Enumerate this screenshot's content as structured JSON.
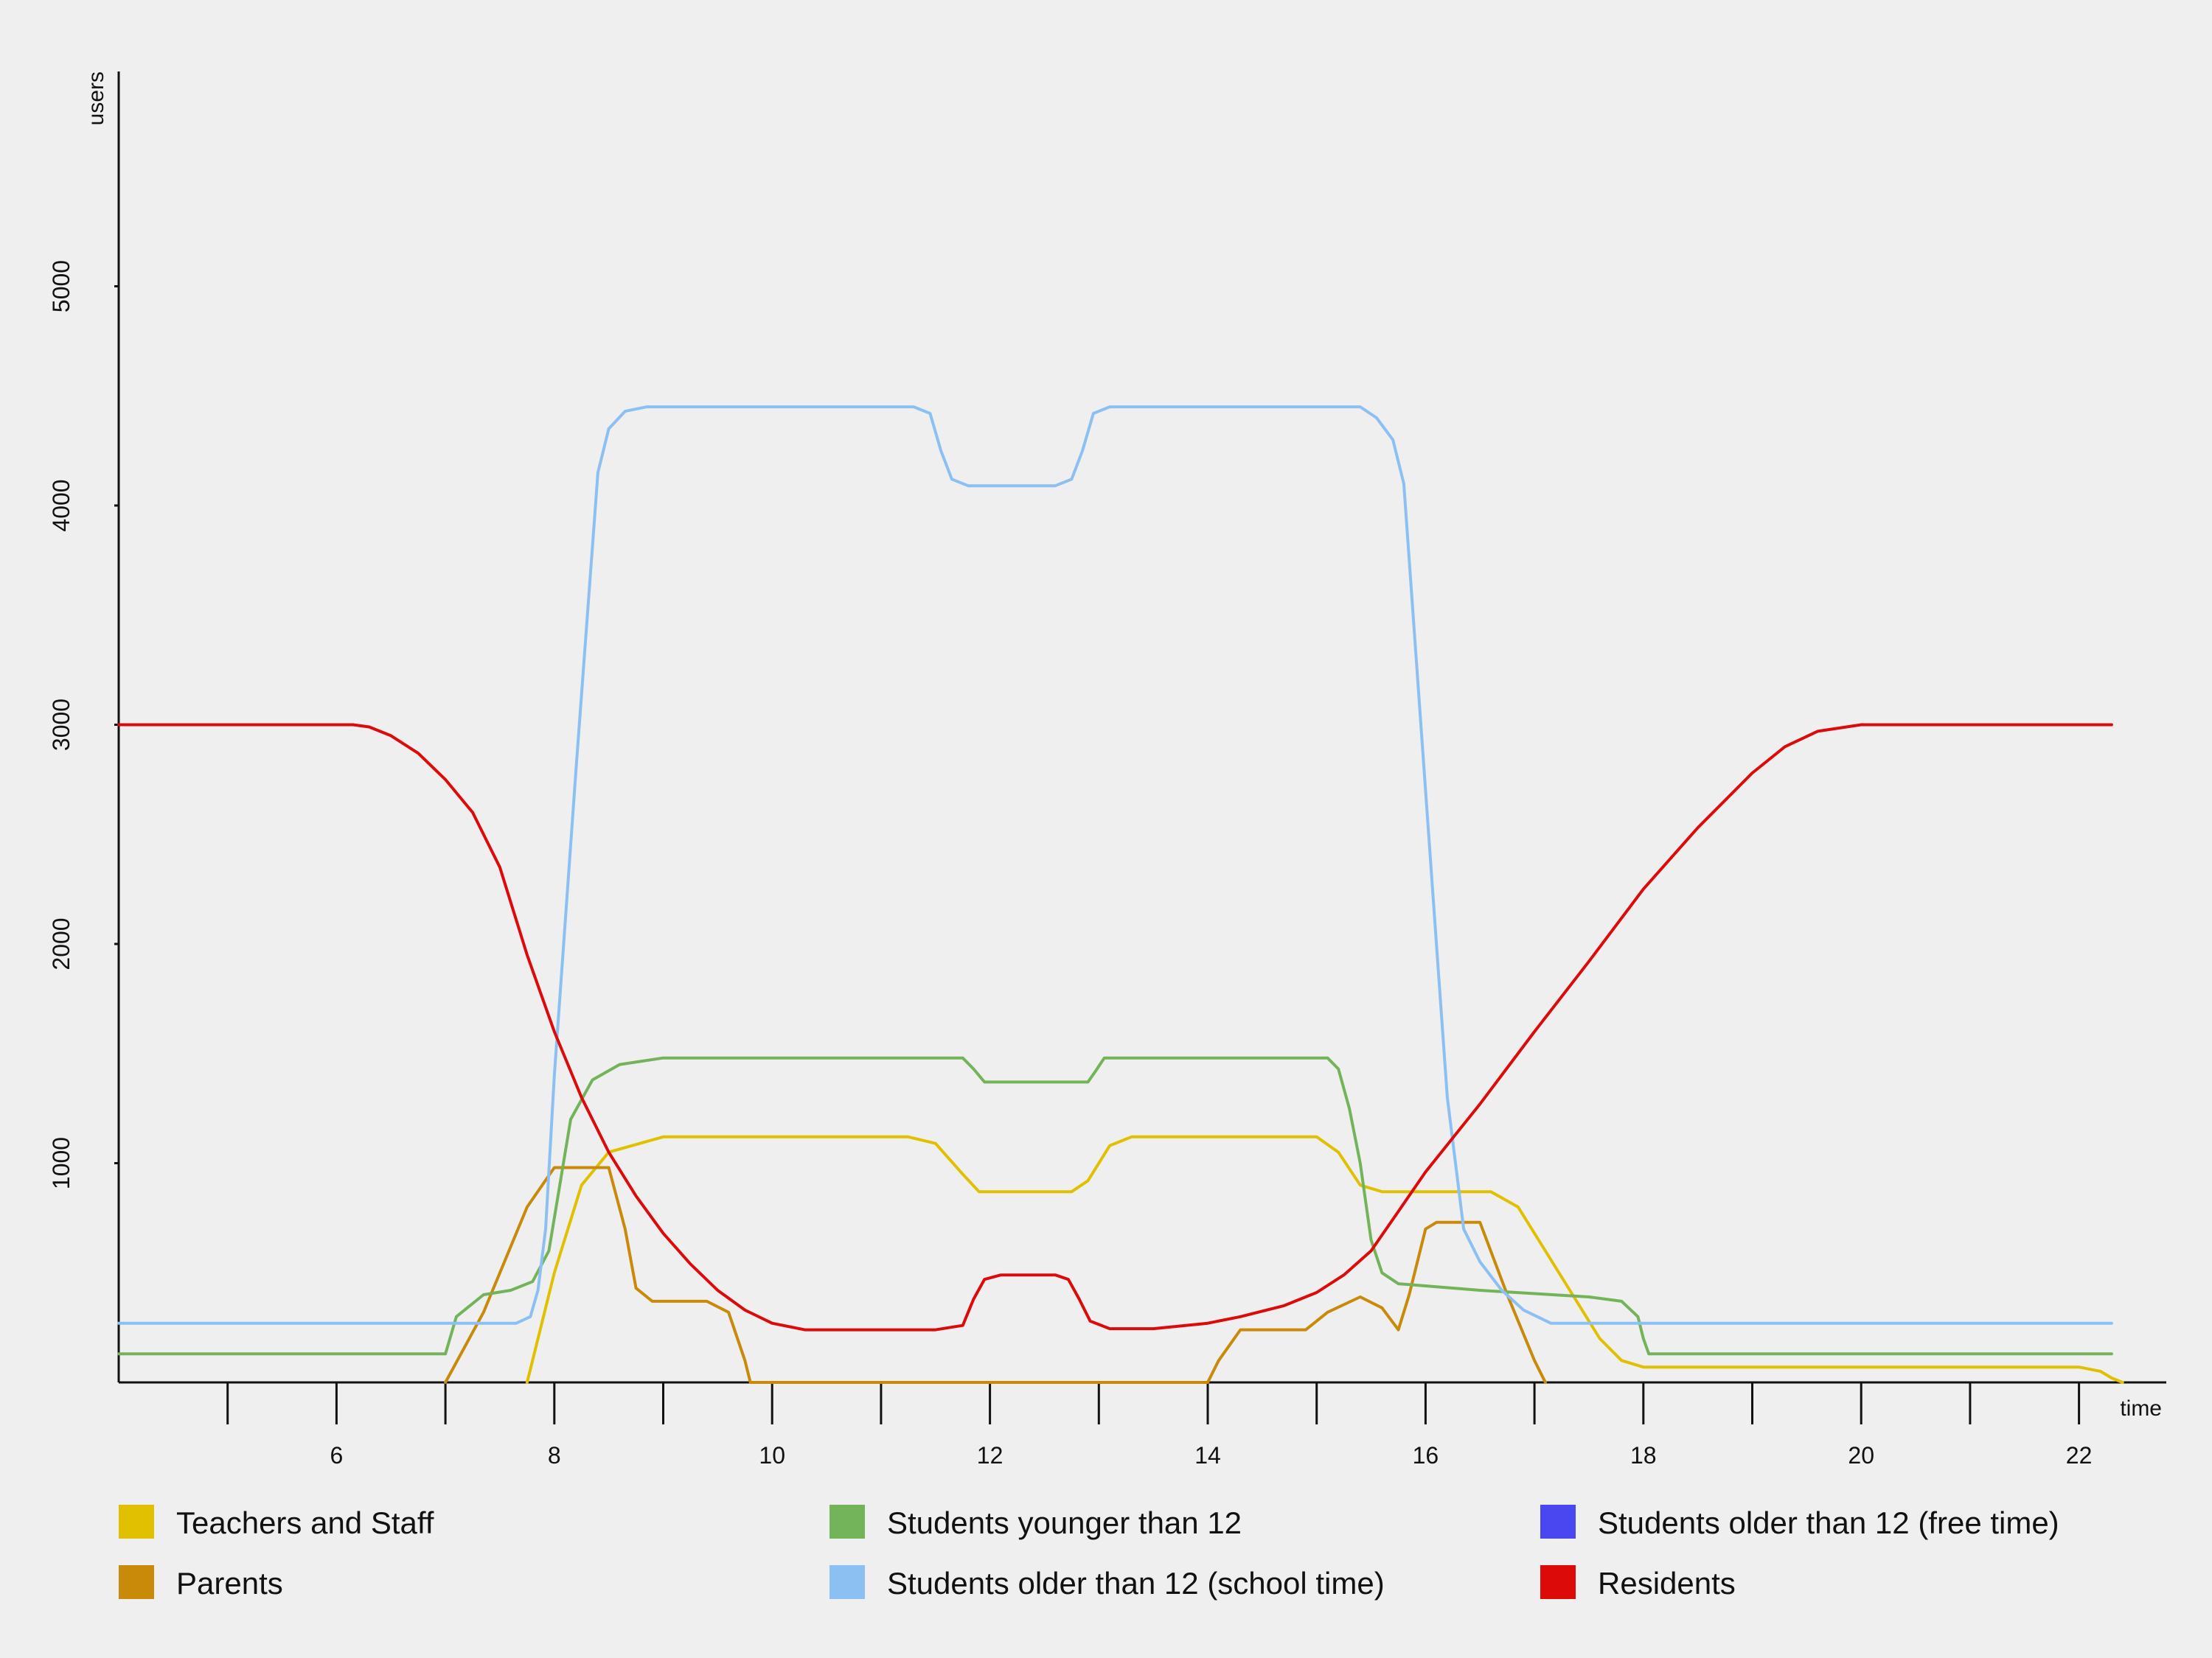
{
  "chart_data": {
    "type": "line",
    "title": "",
    "xlabel": "time",
    "ylabel": "users",
    "xlim": [
      4,
      23
    ],
    "ylim": [
      0,
      6000
    ],
    "x_ticks": [
      5,
      6,
      7,
      8,
      9,
      10,
      11,
      12,
      13,
      14,
      15,
      16,
      17,
      18,
      19,
      20,
      21,
      22
    ],
    "x_tick_labels": [
      {
        "x": 6,
        "label": "6"
      },
      {
        "x": 8,
        "label": "8"
      },
      {
        "x": 10,
        "label": "10"
      },
      {
        "x": 12,
        "label": "12"
      },
      {
        "x": 14,
        "label": "14"
      },
      {
        "x": 16,
        "label": "16"
      },
      {
        "x": 18,
        "label": "18"
      },
      {
        "x": 20,
        "label": "20"
      },
      {
        "x": 22,
        "label": "22"
      }
    ],
    "y_ticks": [
      1000,
      2000,
      3000,
      4000,
      5000
    ],
    "y_tick_labels": [
      "1000",
      "2000",
      "3000",
      "4000",
      "5000"
    ],
    "grid": false,
    "legend_position": "bottom",
    "series": [
      {
        "name": "Teachers and Staff",
        "color": "#e0c000",
        "points": [
          [
            7.75,
            0
          ],
          [
            8.0,
            500
          ],
          [
            8.25,
            900
          ],
          [
            8.5,
            1050
          ],
          [
            9.0,
            1120
          ],
          [
            11.25,
            1120
          ],
          [
            11.5,
            1090
          ],
          [
            11.75,
            950
          ],
          [
            11.9,
            870
          ],
          [
            12.75,
            870
          ],
          [
            12.9,
            920
          ],
          [
            13.1,
            1080
          ],
          [
            13.3,
            1120
          ],
          [
            15.0,
            1120
          ],
          [
            15.2,
            1050
          ],
          [
            15.4,
            900
          ],
          [
            15.6,
            870
          ],
          [
            16.6,
            870
          ],
          [
            16.85,
            800
          ],
          [
            17.1,
            600
          ],
          [
            17.35,
            400
          ],
          [
            17.6,
            200
          ],
          [
            17.8,
            100
          ],
          [
            18.0,
            70
          ],
          [
            22.0,
            70
          ],
          [
            22.2,
            50
          ],
          [
            22.3,
            20
          ],
          [
            22.4,
            0
          ]
        ]
      },
      {
        "name": "Parents",
        "color": "#c98a0a",
        "points": [
          [
            7.0,
            0
          ],
          [
            7.35,
            320
          ],
          [
            7.75,
            800
          ],
          [
            8.0,
            980
          ],
          [
            8.5,
            980
          ],
          [
            8.65,
            700
          ],
          [
            8.75,
            430
          ],
          [
            8.9,
            370
          ],
          [
            9.4,
            370
          ],
          [
            9.6,
            320
          ],
          [
            9.75,
            100
          ],
          [
            9.8,
            0
          ],
          [
            14.0,
            0
          ],
          [
            14.1,
            100
          ],
          [
            14.3,
            240
          ],
          [
            14.9,
            240
          ],
          [
            15.1,
            320
          ],
          [
            15.4,
            390
          ],
          [
            15.6,
            340
          ],
          [
            15.75,
            240
          ],
          [
            15.85,
            400
          ],
          [
            16.0,
            700
          ],
          [
            16.1,
            730
          ],
          [
            16.5,
            730
          ],
          [
            16.75,
            400
          ],
          [
            17.0,
            100
          ],
          [
            17.1,
            0
          ]
        ]
      },
      {
        "name": "Students younger than 12",
        "color": "#73b35a",
        "points": [
          [
            4.0,
            130
          ],
          [
            7.0,
            130
          ],
          [
            7.1,
            300
          ],
          [
            7.35,
            400
          ],
          [
            7.6,
            420
          ],
          [
            7.8,
            460
          ],
          [
            7.95,
            600
          ],
          [
            8.05,
            900
          ],
          [
            8.15,
            1200
          ],
          [
            8.35,
            1380
          ],
          [
            8.6,
            1450
          ],
          [
            9.0,
            1480
          ],
          [
            11.75,
            1480
          ],
          [
            11.85,
            1430
          ],
          [
            11.95,
            1370
          ],
          [
            12.9,
            1370
          ],
          [
            12.97,
            1420
          ],
          [
            13.05,
            1480
          ],
          [
            15.1,
            1480
          ],
          [
            15.2,
            1430
          ],
          [
            15.3,
            1250
          ],
          [
            15.4,
            1000
          ],
          [
            15.5,
            650
          ],
          [
            15.6,
            500
          ],
          [
            15.75,
            450
          ],
          [
            16.5,
            420
          ],
          [
            17.5,
            390
          ],
          [
            17.8,
            370
          ],
          [
            17.95,
            300
          ],
          [
            18.0,
            200
          ],
          [
            18.05,
            130
          ],
          [
            22.3,
            130
          ]
        ]
      },
      {
        "name": "Students older than 12 (free time)",
        "color": "#4a46f0",
        "points": []
      },
      {
        "name": "Students older than 12 (school time)",
        "color": "#8cc0f2",
        "points": [
          [
            4.0,
            270
          ],
          [
            7.65,
            270
          ],
          [
            7.78,
            300
          ],
          [
            7.85,
            420
          ],
          [
            7.92,
            700
          ],
          [
            8.0,
            1400
          ],
          [
            8.2,
            2800
          ],
          [
            8.4,
            4150
          ],
          [
            8.5,
            4350
          ],
          [
            8.65,
            4430
          ],
          [
            8.85,
            4450
          ],
          [
            11.3,
            4450
          ],
          [
            11.45,
            4420
          ],
          [
            11.55,
            4250
          ],
          [
            11.65,
            4120
          ],
          [
            11.8,
            4090
          ],
          [
            12.6,
            4090
          ],
          [
            12.75,
            4120
          ],
          [
            12.85,
            4250
          ],
          [
            12.95,
            4420
          ],
          [
            13.1,
            4450
          ],
          [
            15.4,
            4450
          ],
          [
            15.55,
            4400
          ],
          [
            15.7,
            4300
          ],
          [
            15.8,
            4100
          ],
          [
            16.0,
            2700
          ],
          [
            16.2,
            1300
          ],
          [
            16.35,
            700
          ],
          [
            16.5,
            550
          ],
          [
            16.7,
            420
          ],
          [
            16.9,
            330
          ],
          [
            17.15,
            270
          ],
          [
            22.3,
            270
          ]
        ]
      },
      {
        "name": "Residents",
        "color": "#dd0a0a",
        "points": [
          [
            4.0,
            3000
          ],
          [
            6.15,
            3000
          ],
          [
            6.3,
            2990
          ],
          [
            6.5,
            2950
          ],
          [
            6.75,
            2870
          ],
          [
            7.0,
            2750
          ],
          [
            7.25,
            2600
          ],
          [
            7.5,
            2350
          ],
          [
            7.75,
            1950
          ],
          [
            8.0,
            1600
          ],
          [
            8.25,
            1300
          ],
          [
            8.5,
            1050
          ],
          [
            8.75,
            850
          ],
          [
            9.0,
            680
          ],
          [
            9.25,
            540
          ],
          [
            9.5,
            420
          ],
          [
            9.75,
            330
          ],
          [
            10.0,
            270
          ],
          [
            10.3,
            240
          ],
          [
            11.5,
            240
          ],
          [
            11.75,
            260
          ],
          [
            11.85,
            380
          ],
          [
            11.95,
            470
          ],
          [
            12.1,
            490
          ],
          [
            12.6,
            490
          ],
          [
            12.72,
            470
          ],
          [
            12.82,
            380
          ],
          [
            12.92,
            280
          ],
          [
            13.1,
            245
          ],
          [
            13.5,
            245
          ],
          [
            14.0,
            270
          ],
          [
            14.3,
            300
          ],
          [
            14.7,
            350
          ],
          [
            15.0,
            410
          ],
          [
            15.25,
            490
          ],
          [
            15.5,
            600
          ],
          [
            15.75,
            780
          ],
          [
            16.0,
            960
          ],
          [
            16.5,
            1270
          ],
          [
            17.0,
            1600
          ],
          [
            17.5,
            1920
          ],
          [
            18.0,
            2250
          ],
          [
            18.5,
            2530
          ],
          [
            19.0,
            2780
          ],
          [
            19.3,
            2900
          ],
          [
            19.6,
            2970
          ],
          [
            20.0,
            3000
          ],
          [
            22.3,
            3000
          ]
        ]
      }
    ]
  },
  "legend": [
    {
      "label": "Teachers and Staff",
      "color": "#e0c000"
    },
    {
      "label": "Students younger than 12",
      "color": "#73b35a"
    },
    {
      "label": "Students older than 12 (free time)",
      "color": "#4a46f0"
    },
    {
      "label": "Parents",
      "color": "#c98a0a"
    },
    {
      "label": "Students older than 12 (school time)",
      "color": "#8cc0f2"
    },
    {
      "label": "Residents",
      "color": "#dd0a0a"
    }
  ]
}
